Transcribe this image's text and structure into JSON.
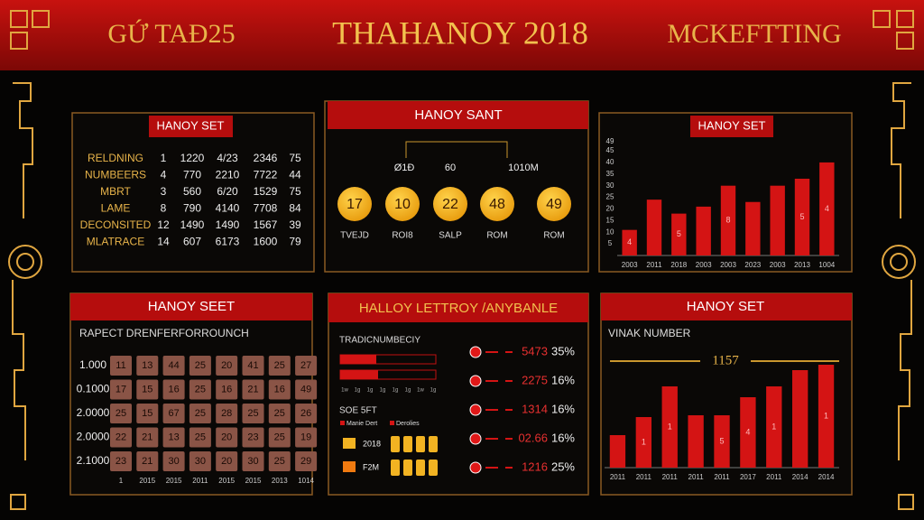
{
  "header": {
    "left": "GỨ TAĐ25",
    "title": "THAHANOY 2018",
    "right": "MCKEFTTING"
  },
  "panel1": {
    "tab": "HANOY SET",
    "rows": [
      [
        "RELDNING",
        "1",
        "1220",
        "4/23",
        "2346",
        "75"
      ],
      [
        "NUMBEERS",
        "4",
        "770",
        "2210",
        "7722",
        "44"
      ],
      [
        "MBRT",
        "3",
        "560",
        "6/20",
        "1529",
        "75"
      ],
      [
        "LAME",
        "8",
        "790",
        "4140",
        "7708",
        "84"
      ],
      [
        "DECONSITED",
        "12",
        "1490",
        "1490",
        "1567",
        "39"
      ],
      [
        "MLATRACE",
        "14",
        "607",
        "6173",
        "1600",
        "79"
      ]
    ]
  },
  "panel2": {
    "header": "HANOY SANT",
    "top_labels": [
      "Ø1Ð",
      "60",
      "1010M"
    ],
    "balls": [
      "17",
      "10",
      "22",
      "48",
      "49"
    ],
    "ball_labels": [
      "TVEJD",
      "ROI8",
      "SALP",
      "ROM",
      "ROM"
    ]
  },
  "panel3": {
    "tab": "HANOY SET",
    "chart": {
      "type": "bar",
      "ylim": [
        0,
        52
      ],
      "yticks": [
        49,
        45,
        40,
        35,
        30,
        25,
        20,
        15,
        10,
        5
      ],
      "categories": [
        "2003",
        "2011",
        "2018",
        "2003",
        "2003",
        "2023",
        "2003",
        "2013",
        "1004"
      ],
      "values": [
        11,
        24,
        18,
        21,
        30,
        23,
        30,
        33,
        40
      ],
      "color": "#d41414",
      "bar_labels": [
        "4",
        null,
        "5",
        null,
        "8",
        null,
        null,
        "5",
        "4"
      ]
    }
  },
  "panel4": {
    "header": "HANOY SEET",
    "subtitle": "RAPECT DRENFERFORROUNCH",
    "row_labels": [
      "1.000",
      "0.1000",
      "2.0000",
      "2.0000",
      "2.1000"
    ],
    "grid": [
      [
        "11",
        "13",
        "44",
        "25",
        "20",
        "41",
        "25",
        "27"
      ],
      [
        "17",
        "15",
        "16",
        "25",
        "16",
        "21",
        "16",
        "49"
      ],
      [
        "25",
        "15",
        "67",
        "25",
        "28",
        "25",
        "25",
        "26"
      ],
      [
        "22",
        "21",
        "13",
        "25",
        "20",
        "23",
        "25",
        "19"
      ],
      [
        "23",
        "21",
        "30",
        "30",
        "20",
        "30",
        "25",
        "29"
      ]
    ],
    "col_labels": [
      "1",
      "2015",
      "2015",
      "2011",
      "2015",
      "2015",
      "2013",
      "1014"
    ]
  },
  "panel5": {
    "header": "HALLOY LETTROY /ANYBANLE",
    "left_title": "TRADICNUMBECIY",
    "scale_labels": [
      "1w",
      "1g",
      "1g",
      "1g",
      "1g",
      "1g",
      "1w",
      "1g"
    ],
    "sub_title": "SOE 5FT",
    "legend": [
      "Manie Dert",
      "Derolies"
    ],
    "rows": [
      "2018",
      "F2M"
    ],
    "stats": [
      [
        "5473",
        "35%"
      ],
      [
        "2275",
        "16%"
      ],
      [
        "1314",
        "16%"
      ],
      [
        "02.66",
        "16%"
      ],
      [
        "1216",
        "25%"
      ]
    ]
  },
  "panel6": {
    "header": "HANOY SET",
    "subtitle": "VINAK NUMBER",
    "line_label": "1157",
    "chart": {
      "type": "bar",
      "ylim": [
        0,
        120
      ],
      "categories": [
        "2011",
        "2011",
        "2011",
        "2011",
        "2011",
        "2017",
        "2011",
        "2014",
        "2014"
      ],
      "values": [
        36,
        56,
        90,
        58,
        58,
        78,
        90,
        108,
        114
      ],
      "color": "#d41414",
      "bar_labels": [
        null,
        "1",
        "1",
        null,
        "5",
        "4",
        "1",
        null,
        "1"
      ]
    }
  }
}
